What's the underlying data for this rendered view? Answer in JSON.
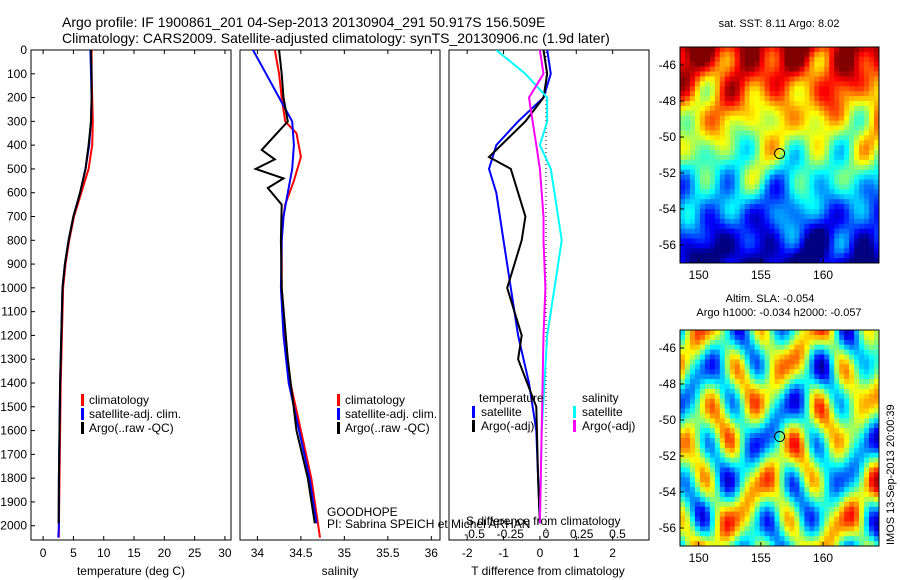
{
  "header": {
    "line1": "Argo profile: IF 1900861_201 04-Sep-2013 20130904_291 50.917S 156.509E",
    "line2": "Climatology: CARS2009. Satellite-adjusted climatology: synTS_20130906.nc (1.9d later)"
  },
  "colors": {
    "climatology": "#ff0000",
    "satellite": "#0000ff",
    "argo": "#000000",
    "sal_satellite": "#00ffff",
    "sal_argo": "#ff00ff"
  },
  "chart_data": [
    {
      "type": "line",
      "xlabel": "temperature (deg C)",
      "ylabel": "",
      "xlim": [
        -2,
        31
      ],
      "ylim": [
        0,
        2060
      ],
      "xticks": [
        0,
        5,
        10,
        15,
        20,
        25,
        30
      ],
      "yticks": [
        0,
        100,
        200,
        300,
        400,
        500,
        600,
        700,
        800,
        900,
        1000,
        1100,
        1200,
        1300,
        1400,
        1500,
        1600,
        1700,
        1800,
        1900,
        2000
      ],
      "y_reversed": true,
      "legend": [
        "climatology",
        "satellite-adj. clim.",
        "Argo(..raw -QC)"
      ],
      "series": [
        {
          "name": "climatology",
          "color_key": "climatology",
          "x": [
            8.0,
            8.0,
            8.1,
            8.2,
            8.1,
            7.5,
            6.3,
            5.1,
            4.3,
            3.7,
            3.3,
            3.1,
            2.9,
            2.8,
            2.7,
            2.6,
            2.6
          ],
          "y": [
            0,
            100,
            200,
            300,
            400,
            500,
            600,
            700,
            800,
            900,
            1000,
            1200,
            1400,
            1600,
            1800,
            2000,
            2050
          ]
        },
        {
          "name": "satellite-adj. clim.",
          "color_key": "satellite",
          "x": [
            7.8,
            7.9,
            8.0,
            7.9,
            7.6,
            7.0,
            6.1,
            5.0,
            4.2,
            3.6,
            3.2,
            3.0,
            2.8,
            2.7,
            2.6,
            2.6,
            2.5
          ],
          "y": [
            0,
            100,
            200,
            300,
            400,
            500,
            600,
            700,
            800,
            900,
            1000,
            1200,
            1400,
            1600,
            1800,
            2000,
            2050
          ]
        },
        {
          "name": "Argo(..raw -QC)",
          "color_key": "argo",
          "x": [
            7.9,
            8.0,
            8.0,
            7.9,
            7.5,
            7.0,
            6.1,
            5.0,
            4.2,
            3.6,
            3.2,
            3.0,
            2.8,
            2.7,
            2.6,
            2.55
          ],
          "y": [
            0,
            100,
            200,
            300,
            400,
            500,
            600,
            700,
            800,
            900,
            1000,
            1200,
            1400,
            1600,
            1800,
            1990
          ]
        }
      ]
    },
    {
      "type": "line",
      "xlabel": "salinity",
      "ylabel": "",
      "xlim": [
        33.8,
        36.1
      ],
      "ylim": [
        0,
        2060
      ],
      "xticks": [
        34,
        34.5,
        35,
        35.5,
        36
      ],
      "y_reversed": true,
      "legend": [
        "climatology",
        "satellite-adj. clim.",
        "Argo(..raw -QC)"
      ],
      "series": [
        {
          "name": "climatology",
          "color_key": "climatology",
          "x": [
            34.2,
            34.25,
            34.28,
            34.32,
            34.45,
            34.5,
            34.42,
            34.32,
            34.3,
            34.28,
            34.28,
            34.32,
            34.38,
            34.5,
            34.62,
            34.72
          ],
          "y": [
            0,
            100,
            200,
            300,
            350,
            450,
            550,
            650,
            700,
            800,
            1000,
            1200,
            1400,
            1600,
            1800,
            2050
          ]
        },
        {
          "name": "satellite-adj. clim.",
          "color_key": "satellite",
          "x": [
            33.95,
            34.1,
            34.25,
            34.4,
            34.42,
            34.4,
            34.35,
            34.3,
            34.28,
            34.27,
            34.3,
            34.36,
            34.48,
            34.6,
            34.68
          ],
          "y": [
            0,
            100,
            200,
            300,
            400,
            500,
            600,
            700,
            800,
            1000,
            1200,
            1400,
            1600,
            1800,
            1990
          ]
        },
        {
          "name": "Argo(..raw -QC)",
          "color_key": "argo",
          "x": [
            34.25,
            34.28,
            34.3,
            34.35,
            34.05,
            34.2,
            33.98,
            34.3,
            34.12,
            34.28,
            34.27,
            34.28,
            34.35,
            34.45,
            34.58,
            34.66
          ],
          "y": [
            0,
            100,
            200,
            300,
            420,
            460,
            500,
            540,
            580,
            650,
            800,
            1000,
            1300,
            1600,
            1800,
            1990
          ]
        }
      ]
    },
    {
      "type": "line",
      "xlabel": "T difference from climatology",
      "xlabel2": "S difference from climatology",
      "xlim": [
        -2.5,
        3
      ],
      "xticks": [
        -2,
        -1,
        0,
        1,
        2
      ],
      "xticks2_labels": [
        "-0.5",
        "-0.25",
        "0",
        "0.25",
        "0.5"
      ],
      "xticks2_values": [
        -0.5,
        -0.25,
        0,
        0.25,
        0.5
      ],
      "ylim": [
        0,
        2060
      ],
      "y_reversed": true,
      "legend_left_title": "temperature",
      "legend_right_title": "salinity",
      "legend": [
        "satellite",
        "Argo(-adj)",
        "satellite",
        "Argo(-adj)"
      ],
      "series": [
        {
          "name": "satellite",
          "color_key": "satellite",
          "x": [
            0.2,
            0.3,
            0.1,
            -0.6,
            -1.2,
            -1.4,
            -1.2,
            -1.1,
            -1.0,
            -0.8,
            -0.6,
            -0.3,
            -0.1,
            -0.05,
            0
          ],
          "y": [
            0,
            100,
            200,
            300,
            400,
            500,
            600,
            700,
            800,
            1000,
            1200,
            1400,
            1600,
            1800,
            1990
          ]
        },
        {
          "name": "Argo(-adj)",
          "color_key": "argo",
          "x": [
            0.1,
            0.2,
            0.1,
            -0.4,
            -1.4,
            -0.8,
            -0.6,
            -0.4,
            -0.5,
            -0.9,
            -0.5,
            -0.6,
            -0.1,
            -0.05,
            0
          ],
          "y": [
            0,
            100,
            200,
            300,
            450,
            500,
            600,
            700,
            800,
            1000,
            1200,
            1300,
            1500,
            1800,
            1990
          ]
        },
        {
          "name": "satellite",
          "color_key": "sal_satellite",
          "x": [
            -1.2,
            -0.4,
            0.2,
            0.2,
            0.0,
            0.3,
            0.4,
            0.5,
            0.6,
            0.4,
            0.2,
            0.05,
            0.0
          ],
          "y": [
            0,
            100,
            200,
            300,
            400,
            500,
            600,
            700,
            800,
            1000,
            1200,
            1600,
            1990
          ]
        },
        {
          "name": "Argo(-adj)",
          "color_key": "sal_argo",
          "x": [
            0.0,
            0.1,
            -0.3,
            -0.2,
            -0.1,
            0.0,
            0.05,
            0.1,
            0.1,
            0.15,
            0.1,
            0.05,
            0.0
          ],
          "y": [
            0,
            100,
            200,
            300,
            400,
            500,
            600,
            700,
            800,
            1000,
            1200,
            1600,
            1990
          ]
        }
      ],
      "annotations": [
        "GOODHOPE",
        "PI: Sabrina SPEICH et Michel ARHAN"
      ]
    },
    {
      "type": "heatmap",
      "title": "sat. SST: 8.11  Argo: 8.02",
      "xticks": [
        150,
        155,
        160
      ],
      "yticks": [
        -46,
        -48,
        -50,
        -52,
        -54,
        -56
      ],
      "xlim": [
        148.5,
        164.5
      ],
      "ylim": [
        -57,
        -45
      ],
      "marker": {
        "lon": 156.509,
        "lat": -50.917
      }
    },
    {
      "type": "heatmap",
      "title": "Altim. SLA: -0.054",
      "subtitle": "Argo h1000: -0.034 h2000: -0.057",
      "xticks": [
        150,
        155,
        160
      ],
      "yticks": [
        -46,
        -48,
        -50,
        -52,
        -54,
        -56
      ],
      "xlim": [
        148.5,
        164.5
      ],
      "ylim": [
        -57,
        -45
      ],
      "marker": {
        "lon": 156.509,
        "lat": -50.917
      }
    }
  ],
  "footer": {
    "stamp": "IMOS 13-Sep-2013 20:00:39"
  }
}
